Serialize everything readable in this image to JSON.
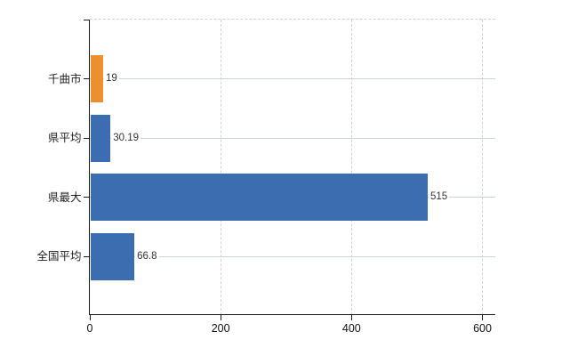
{
  "chart_data": {
    "type": "bar",
    "orientation": "horizontal",
    "categories": [
      "千曲市",
      "県平均",
      "県最大",
      "全国平均"
    ],
    "values": [
      19,
      30.19,
      515,
      66.8
    ],
    "value_labels": [
      "19",
      "30.19",
      "515",
      "66.8"
    ],
    "bar_colors": [
      "#EC8F2E",
      "#3C6DB0",
      "#3C6DB0",
      "#3C6DB0"
    ],
    "xticks": [
      0,
      200,
      400,
      600
    ],
    "xtick_labels": [
      "0",
      "200",
      "400",
      "600"
    ],
    "xlim": [
      0,
      620
    ],
    "grid": true,
    "legend_position": "none",
    "colors": {
      "highlight_bar": "#EC8F2E",
      "default_bar": "#3C6DB0",
      "h_gridline": "#ccd5cc",
      "v_gridline": "#d6ced2",
      "axis": "#1a1a1a",
      "background": "#ffffff"
    }
  }
}
